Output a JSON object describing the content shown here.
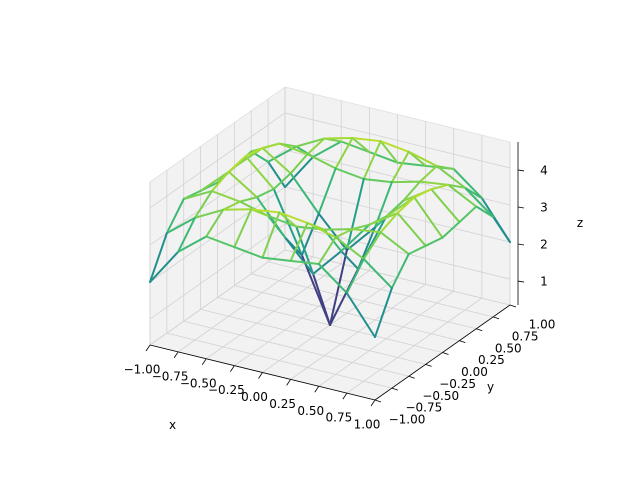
{
  "chart_data": {
    "type": "contour3d",
    "x_label": "x",
    "y_label": "y",
    "z_label": "z",
    "x": [
      -1,
      -0.75,
      -0.5,
      -0.25,
      0,
      0.25,
      0.5,
      0.75,
      1
    ],
    "y": [
      -1,
      -0.75,
      -0.5,
      -0.25,
      0,
      0.25,
      0.5,
      0.75,
      1
    ],
    "z": [
      [
        2.0,
        3.0,
        3.6,
        3.5,
        3.4,
        3.5,
        3.6,
        3.0,
        2.0
      ],
      [
        3.0,
        3.6,
        4.0,
        4.2,
        4.3,
        4.2,
        4.0,
        3.6,
        3.0
      ],
      [
        3.6,
        4.0,
        3.9,
        3.7,
        3.6,
        3.7,
        3.9,
        4.0,
        3.6
      ],
      [
        3.5,
        4.2,
        3.7,
        2.8,
        2.0,
        2.8,
        3.7,
        4.2,
        3.5
      ],
      [
        3.4,
        4.3,
        3.6,
        2.0,
        0.3,
        2.0,
        3.6,
        4.3,
        3.4
      ],
      [
        3.5,
        4.2,
        3.7,
        2.8,
        2.0,
        2.8,
        3.7,
        4.2,
        3.5
      ],
      [
        3.6,
        4.0,
        3.9,
        3.7,
        3.6,
        3.7,
        3.9,
        4.0,
        3.6
      ],
      [
        3.0,
        3.6,
        4.0,
        4.2,
        4.3,
        4.2,
        4.0,
        3.6,
        3.0
      ],
      [
        2.0,
        3.0,
        3.6,
        3.5,
        3.4,
        3.5,
        3.6,
        3.0,
        2.0
      ]
    ],
    "colormap": "viridis",
    "xlim": [
      -1,
      1
    ],
    "ylim": [
      -1,
      1
    ],
    "zlim": [
      0.3,
      4.7
    ],
    "xticks": [
      {
        "value": -1,
        "label": "−1.00"
      },
      {
        "value": -0.75,
        "label": "−0.75"
      },
      {
        "value": -0.5,
        "label": "−0.50"
      },
      {
        "value": -0.25,
        "label": "−0.25"
      },
      {
        "value": 0,
        "label": "0.00"
      },
      {
        "value": 0.25,
        "label": "0.25"
      },
      {
        "value": 0.5,
        "label": "0.50"
      },
      {
        "value": 0.75,
        "label": "0.75"
      },
      {
        "value": 1,
        "label": "1.00"
      }
    ],
    "yticks": [
      {
        "value": -1,
        "label": "−1.00"
      },
      {
        "value": -0.75,
        "label": "−0.75"
      },
      {
        "value": -0.5,
        "label": "−0.50"
      },
      {
        "value": -0.25,
        "label": "−0.25"
      },
      {
        "value": 0,
        "label": "0.00"
      },
      {
        "value": 0.25,
        "label": "0.25"
      },
      {
        "value": 0.5,
        "label": "0.50"
      },
      {
        "value": 0.75,
        "label": "0.75"
      },
      {
        "value": 1,
        "label": "1.00"
      }
    ],
    "zticks": [
      1,
      2,
      3,
      4
    ],
    "grid": true
  }
}
